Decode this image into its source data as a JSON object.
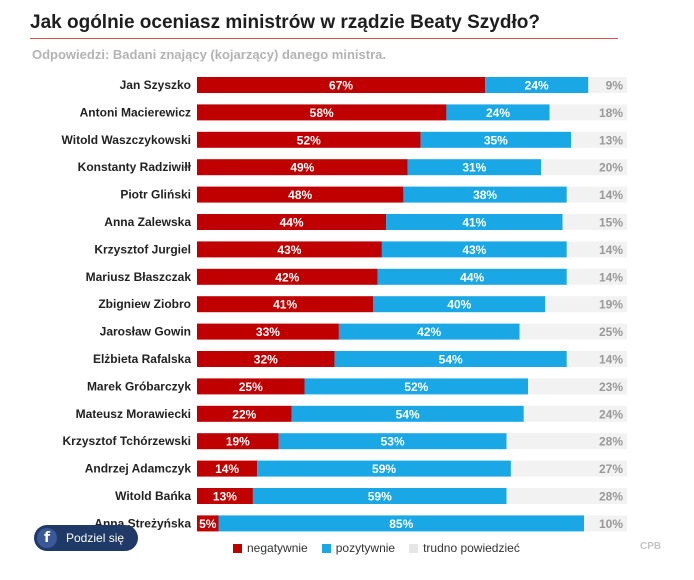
{
  "header": {
    "title": "Jak ogólnie oceniasz ministrów w rządzie Beaty Szydło?",
    "subtitle": "Odpowiedzi: Badani znający (kojarzący) danego ministra."
  },
  "colors": {
    "negative": "#c00000",
    "positive": "#1aa7e6",
    "unsure": "#f2f2f2"
  },
  "chart_data": {
    "type": "bar",
    "orientation": "horizontal",
    "stacked": true,
    "title": "Jak ogólnie oceniasz ministrów w rządzie Beaty Szydło?",
    "subtitle": "Odpowiedzi: Badani znający (kojarzący) danego ministra.",
    "categories": [
      "Jan Szyszko",
      "Antoni Macierewicz",
      "Witold Waszczykowski",
      "Konstanty Radziwiłł",
      "Piotr Gliński",
      "Anna Zalewska",
      "Krzysztof Jurgiel",
      "Mariusz Błaszczak",
      "Zbigniew Ziobro",
      "Jarosław Gowin",
      "Elżbieta Rafalska",
      "Marek Gróbarczyk",
      "Mateusz Morawiecki",
      "Krzysztof Tchórzewski",
      "Andrzej Adamczyk",
      "Witold Bańka",
      "Anna Streżyńska"
    ],
    "series": [
      {
        "name": "negatywnie",
        "color": "#c00000",
        "values": [
          67,
          58,
          52,
          49,
          48,
          44,
          43,
          42,
          41,
          33,
          32,
          25,
          22,
          19,
          14,
          13,
          5
        ]
      },
      {
        "name": "pozytywnie",
        "color": "#1aa7e6",
        "values": [
          24,
          24,
          35,
          31,
          38,
          41,
          43,
          44,
          40,
          42,
          54,
          52,
          54,
          53,
          59,
          59,
          85
        ]
      },
      {
        "name": "trudno powiedzieć",
        "color": "#f2f2f2",
        "values": [
          9,
          18,
          13,
          20,
          14,
          15,
          14,
          14,
          19,
          25,
          14,
          23,
          24,
          28,
          27,
          28,
          10
        ]
      }
    ],
    "value_suffix": "%",
    "xlim": [
      0,
      100
    ],
    "legend_position": "bottom"
  },
  "legend": {
    "negative": "negatywnie",
    "positive": "pozytywnie",
    "unsure": "trudno powiedzieć"
  },
  "share": {
    "label": "Podziel się",
    "icon": "facebook-icon",
    "icon_glyph": "f"
  },
  "watermark": "CPB"
}
